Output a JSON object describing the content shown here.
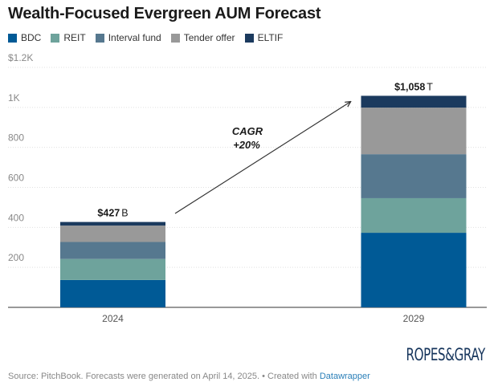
{
  "title": "Wealth-Focused Evergreen AUM Forecast",
  "legend": [
    {
      "label": "BDC",
      "color": "#005a96"
    },
    {
      "label": "REIT",
      "color": "#6ea39c"
    },
    {
      "label": "Interval fund",
      "color": "#56788f"
    },
    {
      "label": "Tender offer",
      "color": "#999999"
    },
    {
      "label": "ELTIF",
      "color": "#1b3a5e"
    }
  ],
  "chart_data": {
    "type": "bar",
    "stacked": true,
    "categories": [
      "2024",
      "2029"
    ],
    "series": [
      {
        "name": "BDC",
        "values": [
          137,
          373
        ],
        "color": "#005a96"
      },
      {
        "name": "REIT",
        "values": [
          105,
          173
        ],
        "color": "#6ea39c"
      },
      {
        "name": "Interval fund",
        "values": [
          85,
          220
        ],
        "color": "#56788f"
      },
      {
        "name": "Tender offer",
        "values": [
          82,
          233
        ],
        "color": "#999999"
      },
      {
        "name": "ELTIF",
        "values": [
          18,
          59
        ],
        "color": "#1b3a5e"
      }
    ],
    "totals": [
      427,
      1058
    ],
    "total_labels": [
      {
        "value": "$427",
        "suffix": "B"
      },
      {
        "value": "$1,058",
        "suffix": "T"
      }
    ],
    "ylim": [
      0,
      1200
    ],
    "yticks": [
      200,
      400,
      600,
      800,
      1000,
      1200
    ],
    "ytick_labels": [
      "200",
      "400",
      "600",
      "800",
      "1K",
      "$1.2K"
    ],
    "annotation": [
      "CAGR",
      "+20%"
    ],
    "grid": true
  },
  "logo_text": "ROPES&GRAY",
  "footer": {
    "text": "Source: PitchBook. Forecasts were generated on April 14, 2025. • Created with ",
    "link": "Datawrapper"
  }
}
